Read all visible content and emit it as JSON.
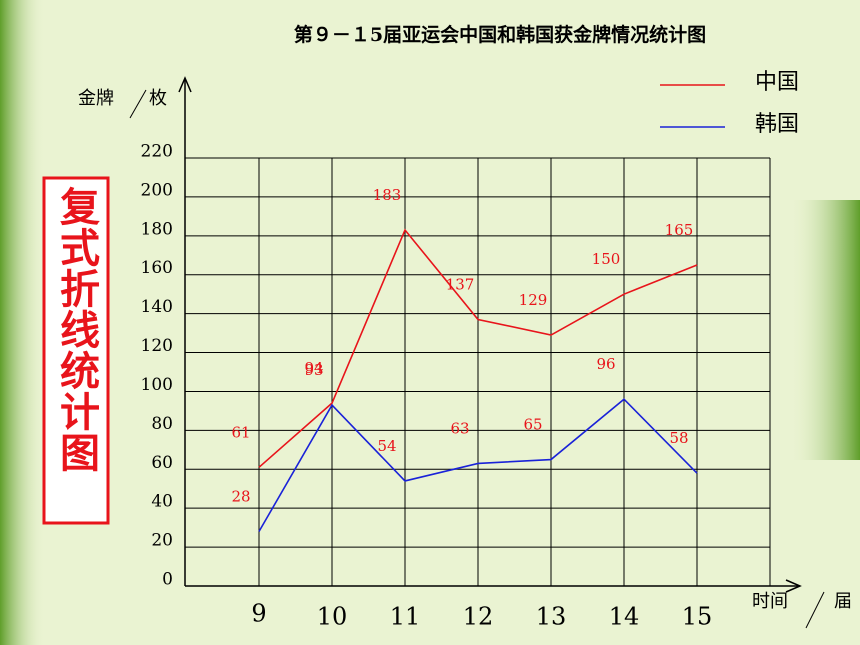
{
  "chart_data": {
    "type": "line",
    "title": "第９－１5届亚运会中国和韩国获金牌情况统计图",
    "side_title": "复式折线统计图",
    "y_label": "金牌",
    "y_unit": "枚",
    "x_label": "时间",
    "x_unit": "届",
    "categories": [
      "9",
      "10",
      "11",
      "12",
      "13",
      "14",
      "15"
    ],
    "series": [
      {
        "name": "中国",
        "color": "#e8141b",
        "values": [
          61,
          94,
          183,
          137,
          129,
          150,
          165
        ]
      },
      {
        "name": "韩国",
        "color": "#1a22d8",
        "values": [
          28,
          93,
          54,
          63,
          65,
          96,
          58
        ]
      }
    ],
    "ylim": [
      0,
      220
    ],
    "yticks": [
      0,
      20,
      40,
      60,
      80,
      100,
      120,
      140,
      160,
      180,
      200,
      220
    ],
    "grid": true,
    "legend": "upper right",
    "value_label_color": "#e8141b"
  }
}
